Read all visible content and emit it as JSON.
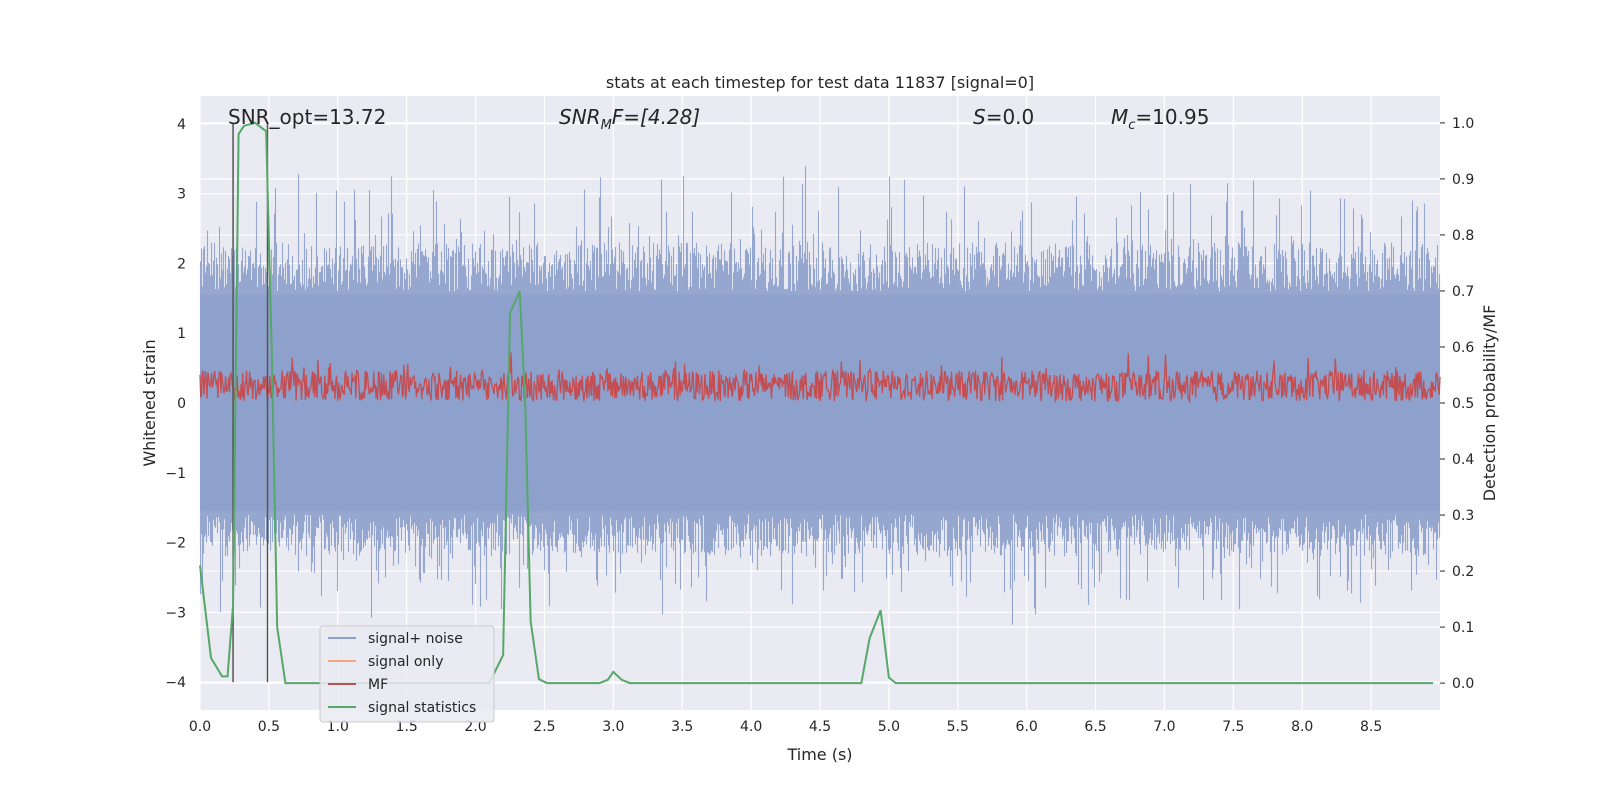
{
  "chart_data": {
    "type": "line",
    "title": "stats at each timestep for test data 11837 [signal=0]",
    "xlabel": "Time (s)",
    "ylabel_left": "Whitened strain",
    "ylabel_right": "Detection probability/MF",
    "xlim": [
      0.0,
      9.0
    ],
    "ylim_left": [
      -4.4,
      4.4
    ],
    "ylim_right": [
      -0.048,
      1.048
    ],
    "x_ticks": [
      "0.0",
      "0.5",
      "1.0",
      "1.5",
      "2.0",
      "2.5",
      "3.0",
      "3.5",
      "4.0",
      "4.5",
      "5.0",
      "5.5",
      "6.0",
      "6.5",
      "7.0",
      "7.5",
      "8.0",
      "8.5"
    ],
    "y_ticks_left": [
      "4",
      "3",
      "2",
      "1",
      "0",
      "−1",
      "−2",
      "−3",
      "−4"
    ],
    "y_ticks_right": [
      "1.0",
      "0.9",
      "0.8",
      "0.7",
      "0.6",
      "0.5",
      "0.4",
      "0.3",
      "0.2",
      "0.1",
      "0.0"
    ],
    "grid": true,
    "legend_position": "lower-left",
    "annotations": {
      "snr_opt": "SNR_opt=13.72",
      "snr_mf_base": "SNR",
      "snr_mf_sub": "M",
      "snr_mf_rest": "F=[4.28]",
      "s_label": "S",
      "s_rest": "=0.0",
      "mc_base": "M",
      "mc_sub": "c",
      "mc_rest": "=10.95"
    },
    "series": [
      {
        "name": "signal+ noise",
        "color": "#8da0cb",
        "axis": "left",
        "description": "noise envelope",
        "typical_peak_abs": 2.2,
        "max_value": 4.0,
        "min_value": -3.6
      },
      {
        "name": "signal only",
        "color": "#f4a582",
        "axis": "left",
        "values_x": [],
        "values_y": []
      },
      {
        "name": "MF",
        "color": "#c44e52",
        "axis": "right",
        "typical_range": [
          0.5,
          0.6
        ],
        "max_value": 0.62
      },
      {
        "name": "signal statistics",
        "color": "#55a868",
        "axis": "right",
        "x": [
          0.0,
          0.08,
          0.16,
          0.2,
          0.24,
          0.28,
          0.32,
          0.4,
          0.48,
          0.52,
          0.56,
          0.62,
          0.7,
          1.0,
          1.5,
          2.0,
          2.1,
          2.2,
          2.25,
          2.32,
          2.36,
          2.4,
          2.46,
          2.52,
          2.6,
          2.9,
          2.96,
          3.0,
          3.06,
          3.12,
          3.5,
          4.0,
          4.5,
          4.8,
          4.86,
          4.94,
          5.0,
          5.05,
          6.0,
          7.0,
          8.0,
          8.95
        ],
        "y": [
          0.21,
          0.045,
          0.012,
          0.012,
          0.14,
          0.98,
          0.995,
          1.0,
          0.985,
          0.6,
          0.1,
          0.0,
          0.0,
          0.0,
          0.0,
          0.0,
          0.0,
          0.05,
          0.66,
          0.7,
          0.5,
          0.11,
          0.007,
          0.0,
          0.0,
          0.0,
          0.006,
          0.02,
          0.006,
          0.0,
          0.0,
          0.0,
          0.0,
          0.0,
          0.08,
          0.13,
          0.01,
          0.0,
          0.0,
          0.0,
          0.0,
          0.0
        ]
      }
    ],
    "vertical_markers_x": [
      0.24,
      0.49
    ]
  }
}
